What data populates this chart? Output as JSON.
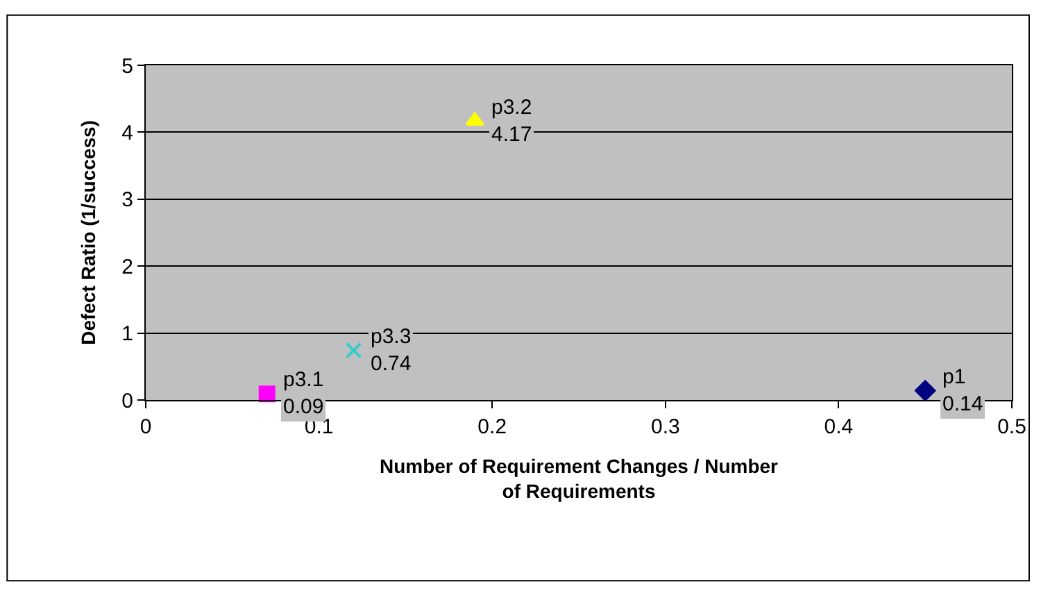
{
  "chart_data": {
    "type": "scatter",
    "xlabel": "Number of Requirement Changes / Number of Requirements",
    "ylabel": "Defect Ratio (1/success)",
    "series": [
      {
        "name": "p1",
        "color": "#000080",
        "marker": "diamond",
        "x": [
          0.45
        ],
        "values": [
          0.14
        ],
        "value_labels": [
          "0.14"
        ]
      },
      {
        "name": "p3.1",
        "color": "#ff00ff",
        "marker": "square",
        "x": [
          0.07
        ],
        "values": [
          0.09
        ],
        "value_labels": [
          "0.09"
        ]
      },
      {
        "name": "p3.2",
        "color": "#ffff00",
        "marker": "triangle",
        "x": [
          0.19
        ],
        "values": [
          4.17
        ],
        "value_labels": [
          "4.17"
        ]
      },
      {
        "name": "p3.3",
        "color": "#33cccc",
        "marker": "cross",
        "x": [
          0.12
        ],
        "values": [
          0.74
        ],
        "value_labels": [
          "0.74"
        ]
      }
    ],
    "xlim": [
      0,
      0.5
    ],
    "xticks": [
      0,
      0.1,
      0.2,
      0.3,
      0.4,
      0.5
    ],
    "ylim": [
      0,
      5
    ],
    "yticks": [
      0,
      1,
      2,
      3,
      4,
      5
    ],
    "grid": "y",
    "legend": false
  }
}
